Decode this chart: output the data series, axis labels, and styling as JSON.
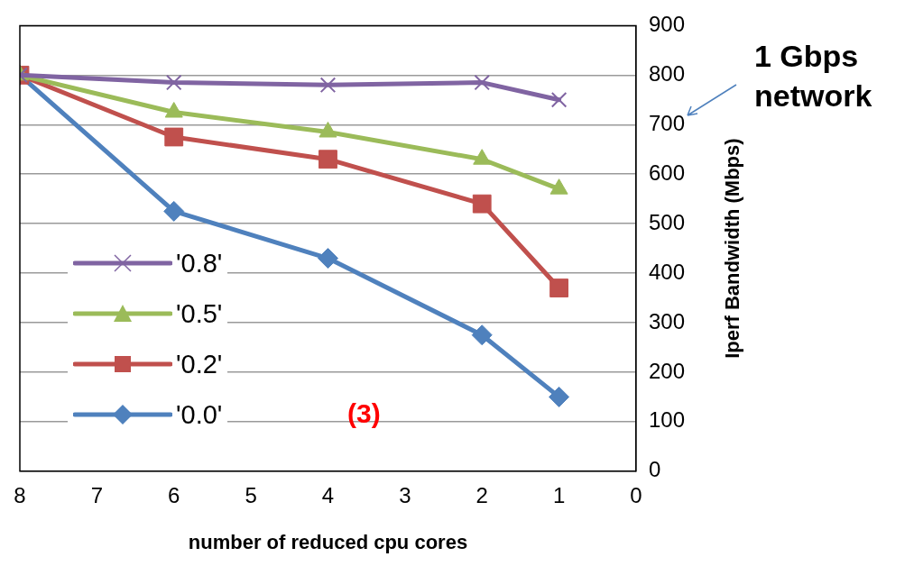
{
  "chart_data": {
    "type": "line",
    "xlabel": "number of reduced cpu cores",
    "ylabel": "Iperf Bandwidth (Mbps)",
    "x": [
      8,
      6,
      4,
      2,
      1
    ],
    "series": [
      {
        "name": "'0.8'",
        "color": "#8064a2",
        "marker": "cross",
        "values": [
          800,
          785,
          780,
          785,
          750
        ]
      },
      {
        "name": "'0.5'",
        "color": "#9bbb59",
        "marker": "triangle",
        "values": [
          800,
          725,
          685,
          630,
          570
        ]
      },
      {
        "name": "'0.2'",
        "color": "#c0504d",
        "marker": "square",
        "values": [
          800,
          675,
          630,
          540,
          370
        ]
      },
      {
        "name": "'0.0'",
        "color": "#4f81bd",
        "marker": "diamond",
        "values": [
          800,
          525,
          430,
          275,
          150
        ]
      }
    ],
    "xlim": [
      8,
      0
    ],
    "xticks": [
      8,
      7,
      6,
      5,
      4,
      3,
      2,
      1,
      0
    ],
    "ylim": [
      0,
      900
    ],
    "yticks": [
      0,
      100,
      200,
      300,
      400,
      500,
      600,
      700,
      800,
      900
    ],
    "grid": "y",
    "legend": "bottom left",
    "annotations": [
      "1 Gbps network",
      "(3)"
    ]
  }
}
